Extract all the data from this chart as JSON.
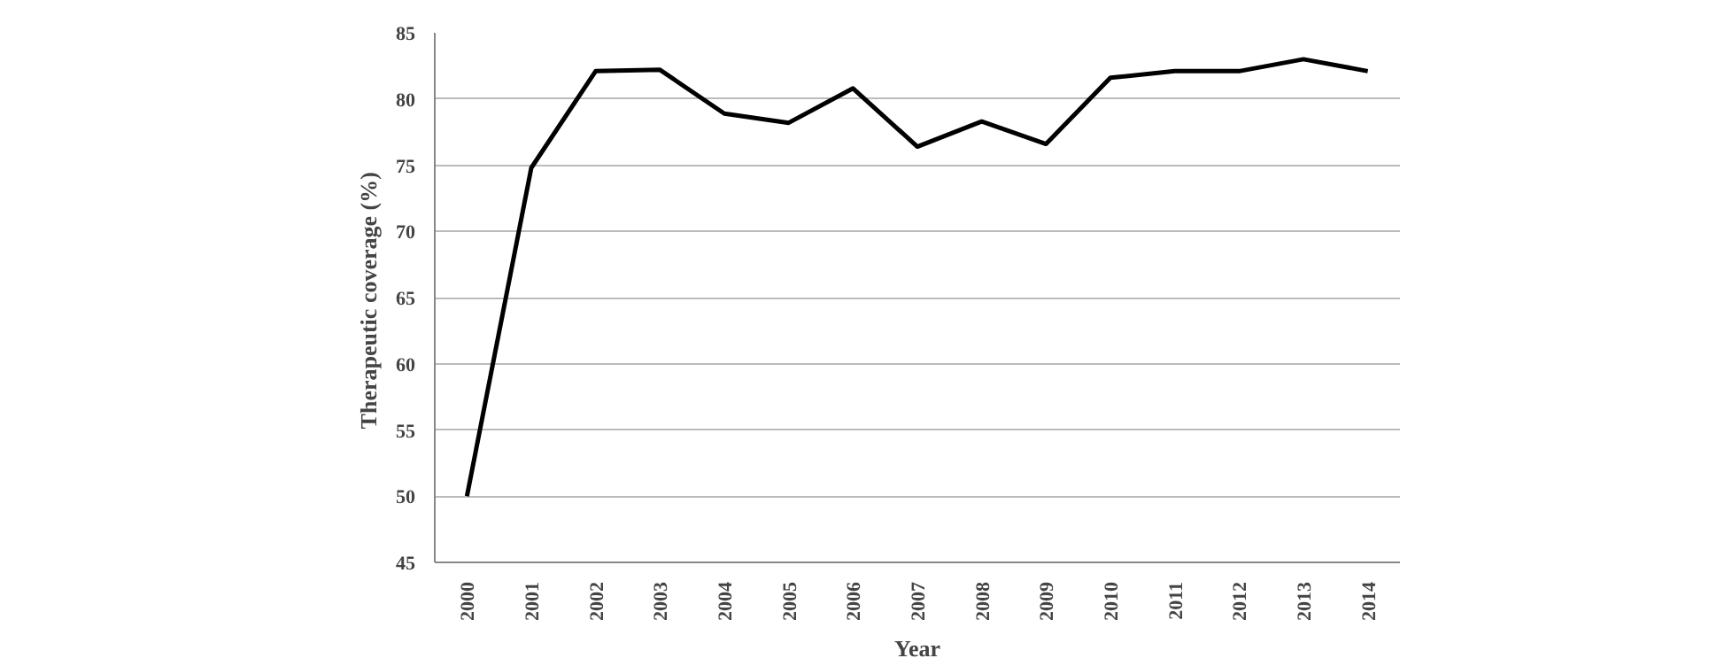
{
  "chart_data": {
    "type": "line",
    "xlabel": "Year",
    "ylabel": "Therapeutic  coverage (%)",
    "categories": [
      "2000",
      "2001",
      "2002",
      "2003",
      "2004",
      "2005",
      "2006",
      "2007",
      "2008",
      "2009",
      "2010",
      "2011",
      "2012",
      "2013",
      "2014"
    ],
    "series": [
      {
        "color": "#000000",
        "values": [
          50,
          74.8,
          82.1,
          82.2,
          78.9,
          78.2,
          80.8,
          76.4,
          78.3,
          76.6,
          81.6,
          82.1,
          82.1,
          83.0,
          82.1
        ]
      }
    ],
    "ylim": [
      45,
      85
    ],
    "yticks": [
      45,
      50,
      55,
      60,
      65,
      70,
      75,
      80,
      85
    ],
    "grid": "y",
    "marker": "none",
    "line_style": "solid"
  }
}
